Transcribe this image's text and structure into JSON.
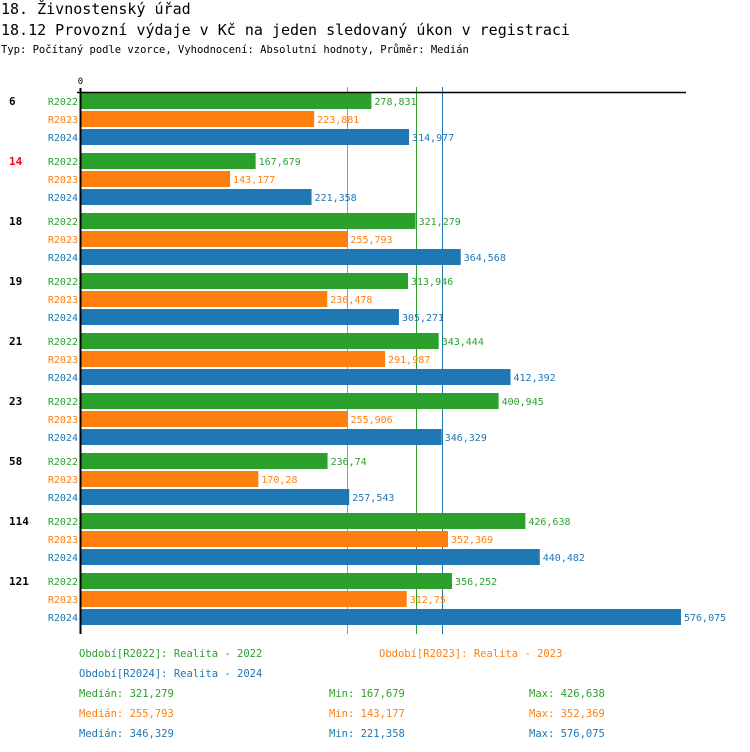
{
  "header": {
    "title": "18. Živnostenský úřad",
    "subtitle": "18.12 Provozní výdaje v Kč na jeden sledovaný úkon v registraci",
    "info": "Typ: Počítaný podle vzorce, Vyhodnocení: Absolutní hodnoty, Průměr: Medián"
  },
  "chart_data": {
    "type": "bar",
    "orientation": "horizontal",
    "title": "18.12 Provozní výdaje v Kč na jeden sledovaný úkon v registraci",
    "xlabel": "",
    "ylabel": "",
    "xlim": [
      0,
      576.075
    ],
    "x_tick_labels": [
      "0"
    ],
    "grid": false,
    "categories": [
      "6",
      "14",
      "18",
      "19",
      "21",
      "23",
      "58",
      "114",
      "121"
    ],
    "highlighted_category": "14",
    "category_colors": {
      "default": "#000000",
      "highlight": "#ff0000"
    },
    "series": [
      {
        "name": "R2022",
        "color": "#2ca02c",
        "values": [
          278.831,
          167.679,
          321.279,
          313.946,
          343.444,
          400.945,
          236.74,
          426.638,
          356.252
        ],
        "labels": [
          "278,831",
          "167,679",
          "321,279",
          "313,946",
          "343,444",
          "400,945",
          "236,74",
          "426,638",
          "356,252"
        ]
      },
      {
        "name": "R2023",
        "color": "#ff7f0e",
        "values": [
          223.881,
          143.177,
          255.793,
          236.478,
          291.987,
          255.906,
          170.28,
          352.369,
          312.75
        ],
        "labels": [
          "223,881",
          "143,177",
          "255,793",
          "236,478",
          "291,987",
          "255,906",
          "170,28",
          "352,369",
          "312,75"
        ]
      },
      {
        "name": "R2024",
        "color": "#1f77b4",
        "values": [
          314.977,
          221.358,
          364.568,
          305.271,
          412.392,
          346.329,
          257.543,
          440.482,
          576.075
        ],
        "labels": [
          "314,977",
          "221,358",
          "364,568",
          "305,271",
          "412,392",
          "346,329",
          "257,543",
          "440,482",
          "576,075"
        ]
      }
    ],
    "median_lines": [
      {
        "series": "R2022",
        "value": 321.279
      },
      {
        "series": "R2023",
        "value": 255.793
      },
      {
        "series": "R2024",
        "value": 346.329
      }
    ]
  },
  "legend": {
    "periods": [
      {
        "text": "Období[R2022]: Realita - 2022",
        "color": "#2ca02c"
      },
      {
        "text": "Období[R2023]: Realita - 2023",
        "color": "#ff7f0e"
      },
      {
        "text": "Období[R2024]: Realita - 2024",
        "color": "#1f77b4"
      }
    ],
    "stats": [
      {
        "color": "#2ca02c",
        "median": "Medián: 321,279",
        "min": "Min: 167,679",
        "max": "Max: 426,638"
      },
      {
        "color": "#ff7f0e",
        "median": "Medián: 255,793",
        "min": "Min: 143,177",
        "max": "Max: 352,369"
      },
      {
        "color": "#1f77b4",
        "median": "Medián: 346,329",
        "min": "Min: 221,358",
        "max": "Max: 576,075"
      }
    ]
  }
}
